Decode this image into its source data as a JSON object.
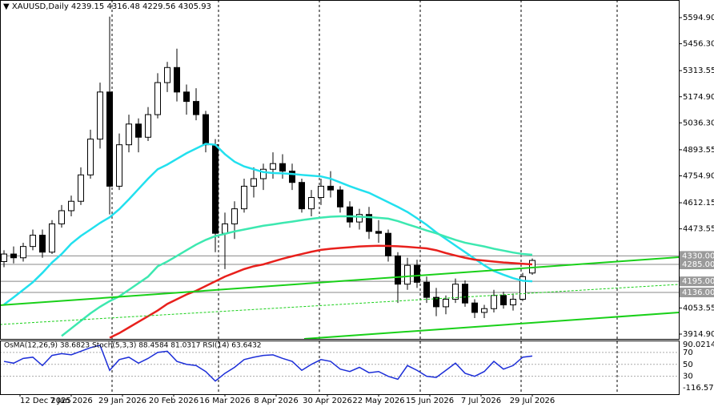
{
  "chart_data": {
    "type": "candlestick",
    "symbol": "XAUUSD,Daily",
    "ylim": [
      3889.4,
      5688.5
    ],
    "yticks": [
      {
        "value": 5594.9,
        "label": "5594.90"
      },
      {
        "value": 5456.3,
        "label": "5456.30"
      },
      5313.55,
      {
        "value": 5174.9,
        "label": "5174.90"
      },
      {
        "value": 5036.3,
        "label": "5036.30"
      },
      4893.55,
      {
        "value": 4754.9,
        "label": "4754.90"
      },
      4612.15,
      4473.55,
      4053.55,
      {
        "value": 3914.9,
        "label": "3914.90"
      }
    ],
    "levels": [
      {
        "value": 4330,
        "label": "4330.00"
      },
      {
        "value": 4285,
        "label": "4285.00"
      },
      {
        "value": 4195,
        "label": "4195.00"
      },
      {
        "value": 4136,
        "label": "4136.00"
      }
    ],
    "xtick_labels": [
      "12 Dec 2025",
      "7 Jan 2026",
      "29 Jan 2026",
      "20 Feb 2026",
      "16 Mar 2026",
      "8 Apr 2026",
      "30 Apr 2026",
      "22 May 2026",
      "15 Jun 2026",
      "7 Jul 2026",
      "29 Jul 2026"
    ],
    "candles": {
      "open": [
        4300,
        4340,
        4320,
        4380,
        4440,
        4350,
        4500,
        4570,
        4620,
        4760,
        4950,
        5200,
        4700,
        4920,
        5030,
        4960,
        5080,
        5250,
        5330,
        5200,
        5150,
        5080,
        4920,
        4450,
        4500,
        4580,
        4700,
        4740,
        4790,
        4820,
        4780,
        4720,
        4580,
        4640,
        4700,
        4680,
        4590,
        4510,
        4550,
        4460,
        4450,
        4330,
        4180,
        4280,
        4190,
        4110,
        4060,
        4100,
        4180,
        4080,
        4030,
        4050,
        4120,
        4070,
        4100,
        4239.15
      ],
      "high": [
        4360,
        4380,
        4400,
        4470,
        4470,
        4520,
        4600,
        4650,
        4800,
        5000,
        5250,
        5600,
        4980,
        5080,
        5060,
        5120,
        5300,
        5360,
        5430,
        5240,
        5220,
        5100,
        4950,
        4560,
        4620,
        4740,
        4800,
        4820,
        4880,
        4870,
        4820,
        4740,
        4680,
        4740,
        4780,
        4700,
        4620,
        4580,
        4590,
        4520,
        4470,
        4350,
        4320,
        4310,
        4220,
        4160,
        4120,
        4210,
        4200,
        4100,
        4070,
        4150,
        4140,
        4130,
        4240,
        4316.48
      ],
      "low": [
        4270,
        4290,
        4300,
        4360,
        4320,
        4340,
        4480,
        4540,
        4600,
        4740,
        4900,
        4550,
        4680,
        4880,
        4880,
        4940,
        5060,
        5200,
        5150,
        5080,
        5050,
        4880,
        4350,
        4260,
        4420,
        4560,
        4640,
        4680,
        4740,
        4740,
        4680,
        4560,
        4540,
        4600,
        4640,
        4560,
        4480,
        4470,
        4420,
        4400,
        4300,
        4080,
        4150,
        4160,
        4080,
        4010,
        4020,
        4080,
        4060,
        4000,
        4000,
        4030,
        4050,
        4040,
        4090,
        4229.56
      ],
      "close": [
        4340,
        4320,
        4380,
        4440,
        4350,
        4500,
        4570,
        4620,
        4760,
        4950,
        5200,
        4700,
        4920,
        5030,
        4960,
        5080,
        5250,
        5330,
        5200,
        5150,
        5080,
        4920,
        4450,
        4500,
        4580,
        4700,
        4740,
        4790,
        4820,
        4780,
        4720,
        4580,
        4640,
        4700,
        4680,
        4590,
        4510,
        4550,
        4460,
        4450,
        4330,
        4180,
        4280,
        4190,
        4110,
        4060,
        4100,
        4180,
        4080,
        4030,
        4050,
        4120,
        4070,
        4100,
        4220,
        4305.93
      ]
    },
    "series": [
      {
        "color": "#22e0ee",
        "values": [
          4072,
          4110,
          4150,
          4190,
          4240,
          4295,
          4340,
          4395,
          4436,
          4470,
          4505,
          4535,
          4578,
          4630,
          4685,
          4740,
          4790,
          4815,
          4845,
          4875,
          4900,
          4925,
          4920,
          4870,
          4830,
          4805,
          4790,
          4775,
          4770,
          4768,
          4765,
          4760,
          4756,
          4752,
          4740,
          4720,
          4700,
          4682,
          4665,
          4640,
          4615,
          4590,
          4563,
          4530,
          4495,
          4455,
          4420,
          4385,
          4350,
          4315,
          4280,
          4250,
          4230,
          4212,
          4198,
          4195
        ]
      },
      {
        "color": "#3de8b0",
        "values": [
          null,
          null,
          null,
          null,
          null,
          null,
          3905,
          3945,
          3985,
          4025,
          4060,
          4090,
          4115,
          4150,
          4185,
          4220,
          4275,
          4300,
          4330,
          4360,
          4390,
          4415,
          4435,
          4447,
          4460,
          4470,
          4480,
          4490,
          4497,
          4505,
          4512,
          4520,
          4527,
          4533,
          4538,
          4540,
          4540,
          4538,
          4536,
          4532,
          4528,
          4515,
          4498,
          4482,
          4465,
          4450,
          4432,
          4415,
          4400,
          4390,
          4380,
          4368,
          4358,
          4348,
          4340,
          4336
        ]
      },
      {
        "color": "#e8201c",
        "values": [
          null,
          null,
          null,
          null,
          null,
          null,
          null,
          null,
          null,
          null,
          null,
          3895,
          3920,
          3950,
          3980,
          4010,
          4040,
          4075,
          4100,
          4125,
          4145,
          4170,
          4195,
          4220,
          4240,
          4260,
          4275,
          4285,
          4300,
          4315,
          4328,
          4340,
          4352,
          4362,
          4368,
          4372,
          4376,
          4380,
          4382,
          4384,
          4383,
          4381,
          4378,
          4374,
          4370,
          4360,
          4345,
          4332,
          4320,
          4310,
          4305,
          4300,
          4295,
          4292,
          4288,
          4285
        ]
      }
    ],
    "indicator": {
      "title": "OsMA(12,26,9) 38.6823  Stoch(5,3,3) 88.4584 81.0317  RSI(14) 63.6432",
      "color": "#1c2ed8",
      "ylim": [
        0,
        90
      ],
      "yticks": [
        90.0214,
        70,
        50,
        30
      ],
      "low_label": -116.5775,
      "values": [
        55,
        52,
        60,
        62,
        48,
        65,
        68,
        66,
        72,
        78,
        82,
        40,
        58,
        62,
        52,
        60,
        70,
        72,
        55,
        50,
        48,
        38,
        22,
        35,
        45,
        58,
        62,
        65,
        66,
        60,
        55,
        40,
        50,
        58,
        55,
        42,
        38,
        45,
        36,
        38,
        30,
        25,
        48,
        40,
        30,
        28,
        40,
        52,
        35,
        30,
        38,
        55,
        42,
        48,
        62,
        64
      ]
    }
  }
}
